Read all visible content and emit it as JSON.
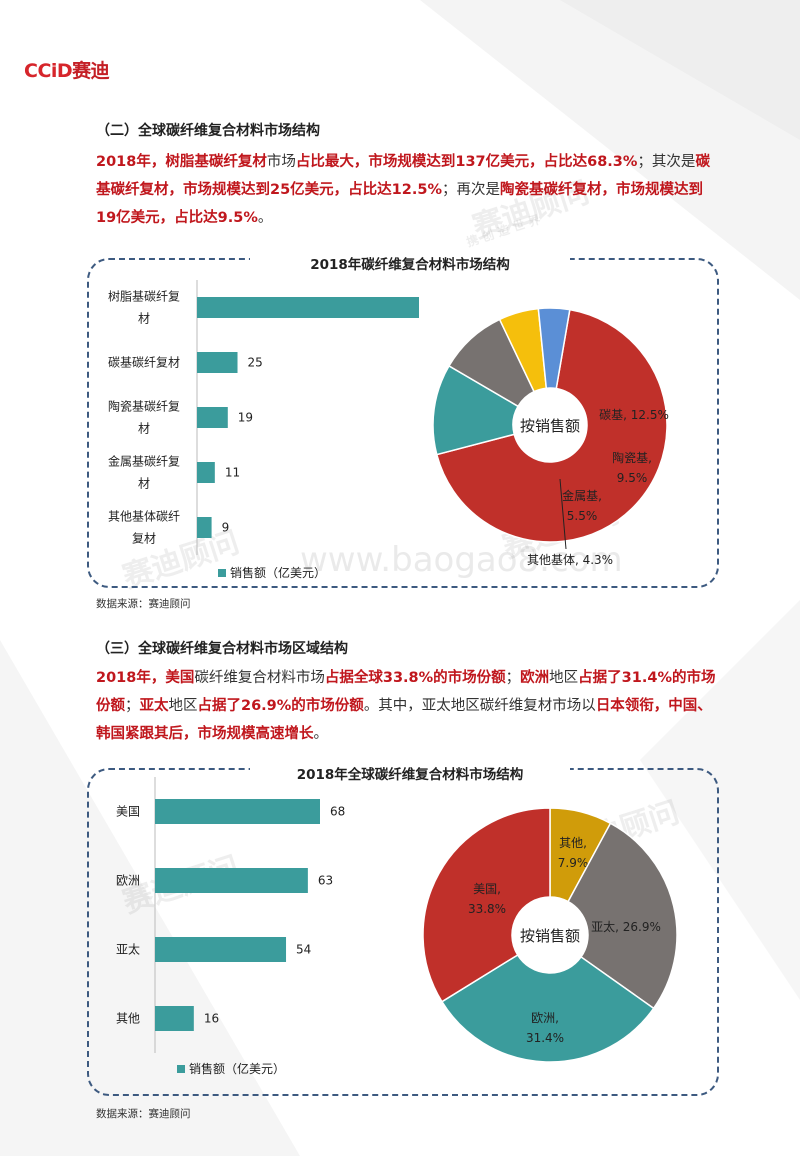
{
  "brand": {
    "logo_en": "CCiD",
    "logo_cn": "赛迪"
  },
  "watermarks": {
    "cn": "赛迪顾问",
    "sub": "携 创 造 世 界",
    "url": "www.baogao8.com"
  },
  "section2": {
    "title": "（二）全球碳纤维复合材料市场结构",
    "para": [
      {
        "t": "2018年，树脂基碳纤复材",
        "hl": true
      },
      {
        "t": "市场",
        "hl": false
      },
      {
        "t": "占比最大，市场规模达到137亿美元，占比达68.3%",
        "hl": true
      },
      {
        "t": "；其次是",
        "hl": false
      },
      {
        "t": "碳基碳纤复材，市场规模达到25亿美元，占比达12.5%",
        "hl": true
      },
      {
        "t": "；再次是",
        "hl": false
      },
      {
        "t": "陶瓷基碳纤复材，市场规模达到19亿美元，占比达9.5%",
        "hl": true
      },
      {
        "t": "。",
        "hl": false
      }
    ],
    "chart_title": "2018年碳纤维复合材料市场结构",
    "source": "数据来源：赛迪顾问"
  },
  "section3": {
    "title": "（三）全球碳纤维复合材料市场区域结构",
    "para": [
      {
        "t": "2018年，美国",
        "hl": true
      },
      {
        "t": "碳纤维复合材料市场",
        "hl": false
      },
      {
        "t": "占据全球33.8%的市场份额",
        "hl": true
      },
      {
        "t": "；",
        "hl": false
      },
      {
        "t": "欧洲",
        "hl": true
      },
      {
        "t": "地区",
        "hl": false
      },
      {
        "t": "占据了31.4%的市场份额",
        "hl": true
      },
      {
        "t": "；",
        "hl": false
      },
      {
        "t": "亚太",
        "hl": true
      },
      {
        "t": "地区",
        "hl": false
      },
      {
        "t": "占据了26.9%的市场份额",
        "hl": true
      },
      {
        "t": "。其中，亚太地区碳纤维复材市场以",
        "hl": false
      },
      {
        "t": "日本领衔，中国、韩国紧跟其后，市场规模高速增长",
        "hl": true
      },
      {
        "t": "。",
        "hl": false
      }
    ],
    "chart_title": "2018年全球碳纤维复合材料市场结构",
    "source": "数据来源：赛迪顾问"
  },
  "chart_data": [
    {
      "type": "bar",
      "orientation": "horizontal",
      "title": "2018年碳纤维复合材料市场结构",
      "categories": [
        [
          "树脂基碳纤复",
          "材"
        ],
        [
          "碳基碳纤复材"
        ],
        [
          "陶瓷基碳纤复",
          "材"
        ],
        [
          "金属基碳纤复",
          "材"
        ],
        [
          "其他基体碳纤",
          "复材"
        ]
      ],
      "series": [
        {
          "name": "销售额（亿美元）",
          "values": [
            137,
            25,
            19,
            11,
            9
          ]
        }
      ],
      "legend": "bottom",
      "color": "#3b9c9c"
    },
    {
      "type": "pie",
      "variant": "donut",
      "title": "2018年碳纤维复合材料市场结构",
      "center_label": "按销售额",
      "slices": [
        {
          "label": [
            "树脂基,",
            "68.3%"
          ],
          "value": 68.3,
          "color": "#c0302a"
        },
        {
          "label": [
            "碳基, 12.5%"
          ],
          "value": 12.5,
          "color": "#3b9c9c"
        },
        {
          "label": [
            "陶瓷基,",
            "9.5%"
          ],
          "value": 9.5,
          "color": "#777270"
        },
        {
          "label": [
            "金属基,",
            "5.5%"
          ],
          "value": 5.5,
          "color": "#f5bf0c"
        },
        {
          "label": [
            "其他基体, 4.3%"
          ],
          "value": 4.3,
          "color": "#5b8fd6"
        }
      ]
    },
    {
      "type": "bar",
      "orientation": "horizontal",
      "title": "2018年全球碳纤维复合材料市场结构",
      "categories": [
        [
          "美国"
        ],
        [
          "欧洲"
        ],
        [
          "亚太"
        ],
        [
          "其他"
        ]
      ],
      "series": [
        {
          "name": "销售额（亿美元）",
          "values": [
            68,
            63,
            54,
            16
          ]
        }
      ],
      "legend": "bottom",
      "color": "#3b9c9c"
    },
    {
      "type": "pie",
      "variant": "donut",
      "title": "2018年全球碳纤维复合材料市场结构",
      "center_label": "按销售额",
      "slices": [
        {
          "label": [
            "其他,",
            "7.9%"
          ],
          "value": 7.9,
          "color": "#d09c0a"
        },
        {
          "label": [
            "亚太, 26.9%"
          ],
          "value": 26.9,
          "color": "#777270"
        },
        {
          "label": [
            "欧洲,",
            "31.4%"
          ],
          "value": 31.4,
          "color": "#3b9c9c"
        },
        {
          "label": [
            "美国,",
            "33.8%"
          ],
          "value": 33.8,
          "color": "#c0302a"
        }
      ]
    }
  ]
}
